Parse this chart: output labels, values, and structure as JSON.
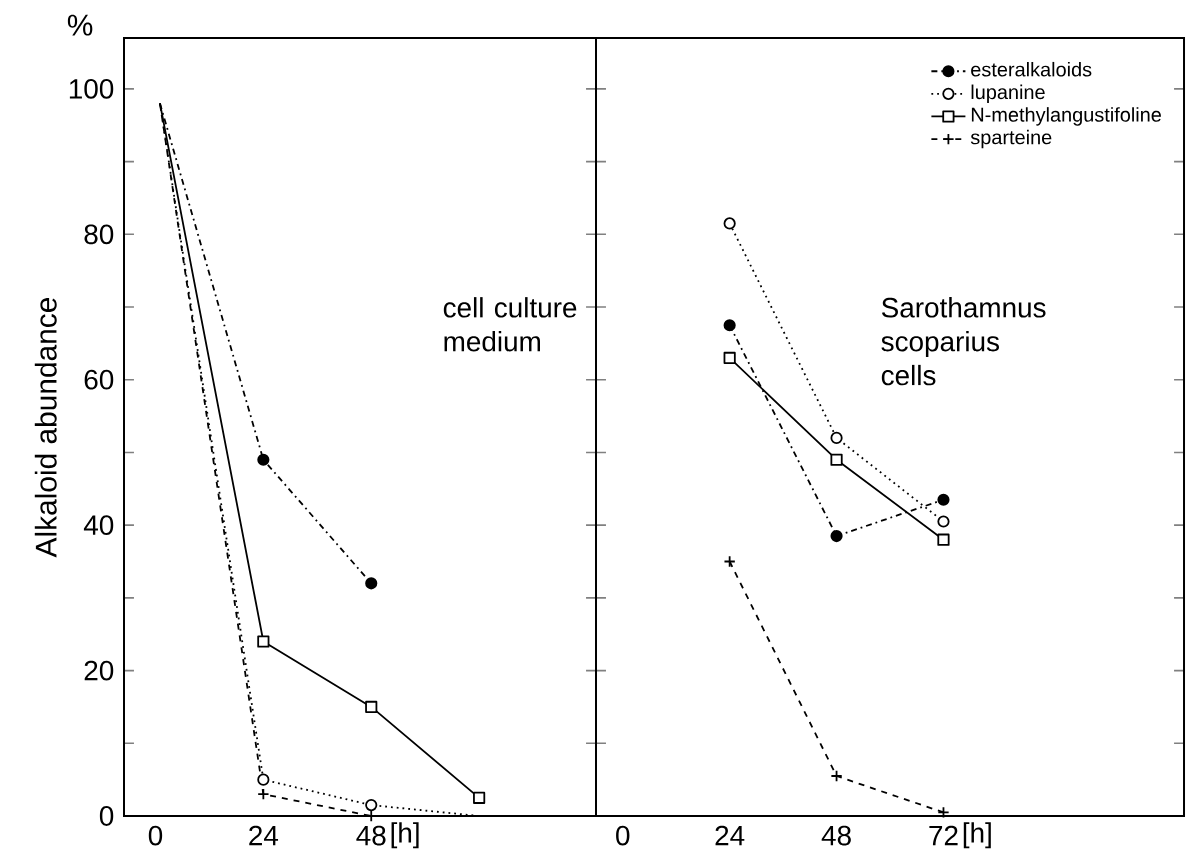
{
  "chart_data": [
    {
      "type": "line",
      "xlim": [
        -7,
        98
      ],
      "ylim": [
        0,
        107
      ],
      "xlabel": "[h]",
      "ylabel": "Alkaloid abundance",
      "xticks": [
        0,
        24,
        48
      ],
      "yticks": [
        0,
        {
          "value": 10,
          "label": null
        },
        20,
        {
          "value": 30,
          "label": null
        },
        40,
        {
          "value": 50,
          "label": null
        },
        60,
        {
          "value": 70,
          "label": null
        },
        80,
        {
          "value": 90,
          "label": null
        },
        100
      ],
      "annotations": [
        "%",
        "cell culture medium"
      ],
      "legend": false,
      "series": [
        {
          "color": "#000000",
          "marker": "circle",
          "line_style": "dashdot",
          "x": [
            1,
            24,
            48
          ],
          "values": [
            98,
            49,
            32
          ]
        },
        {
          "color": "#000000",
          "marker": "circle",
          "line_style": "dotted",
          "x": [
            1,
            24,
            48,
            72
          ],
          "values": [
            98,
            5,
            1.5,
            0
          ]
        },
        {
          "color": "#000000",
          "marker": "square",
          "line_style": "solid",
          "x": [
            1,
            24,
            48,
            72
          ],
          "values": [
            98,
            24,
            15,
            2.5
          ]
        },
        {
          "color": "#000000",
          "marker": "cross",
          "line_style": "dashed",
          "x": [
            1,
            24,
            48,
            72
          ],
          "values": [
            98,
            3,
            0,
            0
          ]
        }
      ]
    },
    {
      "type": "line",
      "xlim": [
        -6,
        126
      ],
      "ylim": [
        0,
        107
      ],
      "xlabel": "[h]",
      "xticks": [
        0,
        24,
        48,
        72
      ],
      "yticks": [
        {
          "value": 0,
          "label": null
        },
        {
          "value": 10,
          "label": null
        },
        {
          "value": 20,
          "label": null
        },
        {
          "value": 30,
          "label": null
        },
        {
          "value": 40,
          "label": null
        },
        {
          "value": 50,
          "label": null
        },
        {
          "value": 60,
          "label": null
        },
        {
          "value": 70,
          "label": null
        },
        {
          "value": 80,
          "label": null
        },
        {
          "value": 90,
          "label": null
        },
        {
          "value": 100,
          "label": null
        }
      ],
      "tick_labels": "x",
      "annotations": [
        "Sarothamnus scoparius cells"
      ],
      "legend": "top right",
      "series": [
        {
          "name": "esteralkaloids",
          "color": "#000000",
          "marker": "circle",
          "line_style": "dashdot",
          "x": [
            24,
            48,
            72
          ],
          "values": [
            67.5,
            38.5,
            43.5
          ]
        },
        {
          "name": "lupanine",
          "color": "#000000",
          "marker": "circle",
          "line_style": "dotted",
          "x": [
            24,
            48,
            72
          ],
          "values": [
            81.5,
            52,
            40.5
          ]
        },
        {
          "name": "N-methylangustifoline",
          "color": "#000000",
          "marker": "square",
          "line_style": "solid",
          "x": [
            24,
            48,
            72
          ],
          "values": [
            63,
            49,
            38
          ]
        },
        {
          "name": "sparteine",
          "color": "#000000",
          "marker": "cross",
          "line_style": "dashed",
          "x": [
            24,
            48,
            72
          ],
          "values": [
            35,
            5.5,
            0.5
          ]
        }
      ]
    }
  ]
}
